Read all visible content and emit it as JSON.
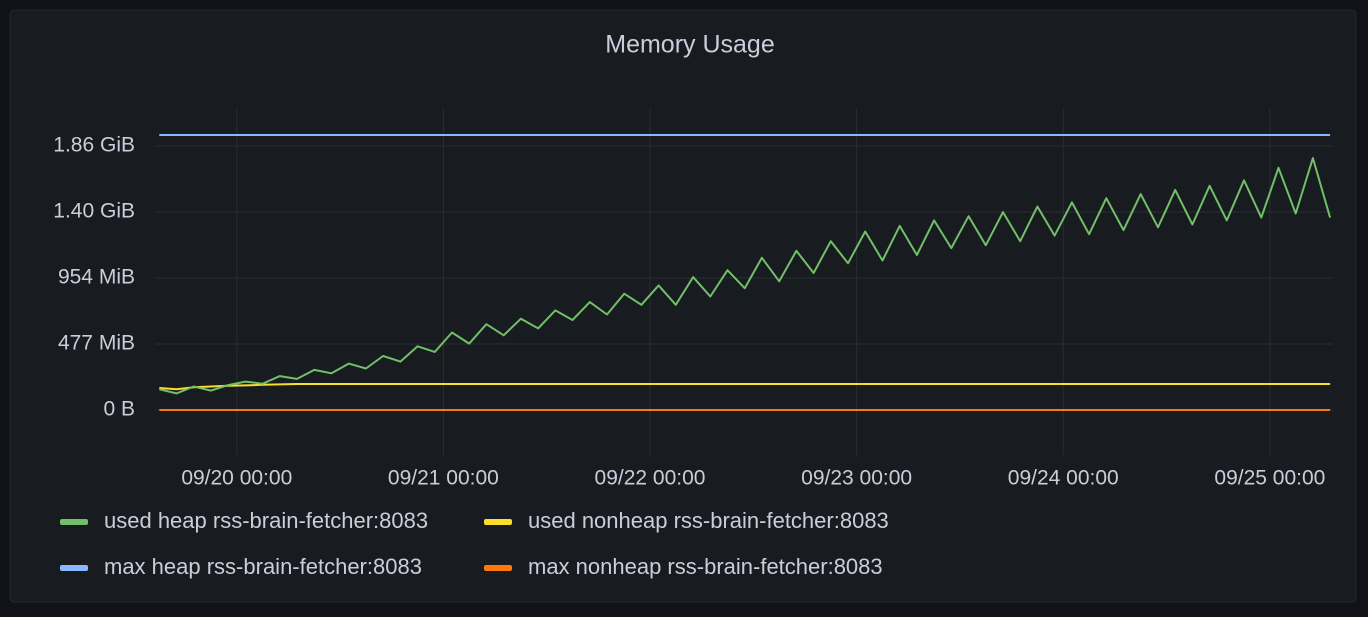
{
  "chart_data": {
    "type": "line",
    "title": "Memory Usage",
    "x": [
      "09/19 15:00",
      "09/19 17:00",
      "09/19 19:00",
      "09/19 21:00",
      "09/19 23:00",
      "09/20 01:00",
      "09/20 03:00",
      "09/20 05:00",
      "09/20 07:00",
      "09/20 09:00",
      "09/20 11:00",
      "09/20 13:00",
      "09/20 15:00",
      "09/20 17:00",
      "09/20 19:00",
      "09/20 21:00",
      "09/20 23:00",
      "09/21 01:00",
      "09/21 03:00",
      "09/21 05:00",
      "09/21 07:00",
      "09/21 09:00",
      "09/21 11:00",
      "09/21 13:00",
      "09/21 15:00",
      "09/21 17:00",
      "09/21 19:00",
      "09/21 21:00",
      "09/21 23:00",
      "09/22 01:00",
      "09/22 03:00",
      "09/22 05:00",
      "09/22 07:00",
      "09/22 09:00",
      "09/22 11:00",
      "09/22 13:00",
      "09/22 15:00",
      "09/22 17:00",
      "09/22 19:00",
      "09/22 21:00",
      "09/22 23:00",
      "09/23 01:00",
      "09/23 03:00",
      "09/23 05:00",
      "09/23 07:00",
      "09/23 09:00",
      "09/23 11:00",
      "09/23 13:00",
      "09/23 15:00",
      "09/23 17:00",
      "09/23 19:00",
      "09/23 21:00",
      "09/23 23:00",
      "09/24 01:00",
      "09/24 03:00",
      "09/24 05:00",
      "09/24 07:00",
      "09/24 09:00",
      "09/24 11:00",
      "09/24 13:00",
      "09/24 15:00",
      "09/24 17:00",
      "09/24 19:00",
      "09/24 21:00",
      "09/24 23:00",
      "09/25 01:00",
      "09/25 03:00",
      "09/25 05:00",
      "09/25 07:00"
    ],
    "series": [
      {
        "name": "used heap rss-brain-fetcher:8083",
        "color": "#73bf69",
        "values": [
          150,
          120,
          170,
          140,
          180,
          205,
          190,
          245,
          225,
          290,
          265,
          335,
          300,
          390,
          350,
          460,
          420,
          560,
          480,
          620,
          540,
          660,
          590,
          720,
          650,
          780,
          690,
          840,
          760,
          900,
          760,
          960,
          820,
          1010,
          880,
          1100,
          930,
          1150,
          990,
          1220,
          1060,
          1290,
          1080,
          1330,
          1120,
          1370,
          1170,
          1400,
          1190,
          1430,
          1220,
          1470,
          1260,
          1500,
          1270,
          1530,
          1300,
          1560,
          1320,
          1590,
          1340,
          1620,
          1370,
          1660,
          1390,
          1750,
          1420,
          1820,
          1390
        ]
      },
      {
        "name": "used nonheap rss-brain-fetcher:8083",
        "color": "#fade2a",
        "values": [
          159,
          150,
          165,
          170,
          175,
          178,
          182,
          185,
          188,
          188,
          188,
          188,
          188,
          188,
          188,
          188,
          188,
          188,
          188,
          188,
          188,
          188,
          188,
          188,
          188,
          188,
          188,
          188,
          188,
          188,
          188,
          188,
          188,
          188,
          188,
          188,
          188,
          188,
          188,
          188,
          188,
          188,
          188,
          188,
          188,
          188,
          188,
          188,
          188,
          188,
          188,
          188,
          188,
          188,
          188,
          188,
          188,
          188,
          188,
          188,
          188,
          188,
          188,
          188,
          188,
          188,
          188,
          188,
          188
        ]
      },
      {
        "name": "max heap rss-brain-fetcher:8083",
        "color": "#8ab8ff",
        "values": [
          1987,
          1987,
          1987,
          1987,
          1987,
          1987,
          1987,
          1987,
          1987,
          1987,
          1987,
          1987,
          1987,
          1987,
          1987,
          1987,
          1987,
          1987,
          1987,
          1987,
          1987,
          1987,
          1987,
          1987,
          1987,
          1987,
          1987,
          1987,
          1987,
          1987,
          1987,
          1987,
          1987,
          1987,
          1987,
          1987,
          1987,
          1987,
          1987,
          1987,
          1987,
          1987,
          1987,
          1987,
          1987,
          1987,
          1987,
          1987,
          1987,
          1987,
          1987,
          1987,
          1987,
          1987,
          1987,
          1987,
          1987,
          1987,
          1987,
          1987,
          1987,
          1987,
          1987,
          1987,
          1987,
          1987,
          1987,
          1987,
          1987
        ]
      },
      {
        "name": "max nonheap rss-brain-fetcher:8083",
        "color": "#ff780a",
        "values": [
          0,
          0,
          0,
          0,
          0,
          0,
          0,
          0,
          0,
          0,
          0,
          0,
          0,
          0,
          0,
          0,
          0,
          0,
          0,
          0,
          0,
          0,
          0,
          0,
          0,
          0,
          0,
          0,
          0,
          0,
          0,
          0,
          0,
          0,
          0,
          0,
          0,
          0,
          0,
          0,
          0,
          0,
          0,
          0,
          0,
          0,
          0,
          0,
          0,
          0,
          0,
          0,
          0,
          0,
          0,
          0,
          0,
          0,
          0,
          0,
          0,
          0,
          0,
          0,
          0,
          0,
          0,
          0,
          0
        ]
      }
    ],
    "xlim": [
      "09/19 14:30",
      "09/25 07:20"
    ],
    "xticks": [
      "09/20 00:00",
      "09/21 00:00",
      "09/22 00:00",
      "09/23 00:00",
      "09/24 00:00",
      "09/25 00:00"
    ],
    "ylim": [
      -325,
      2182
    ],
    "yticks": [
      {
        "value": 0,
        "label": "0 B"
      },
      {
        "value": 476.84,
        "label": "477 MiB"
      },
      {
        "value": 953.67,
        "label": "954 MiB"
      },
      {
        "value": 1430.51,
        "label": "1.40 GiB"
      },
      {
        "value": 1907.35,
        "label": "1.86 GiB"
      }
    ],
    "grid": true
  }
}
